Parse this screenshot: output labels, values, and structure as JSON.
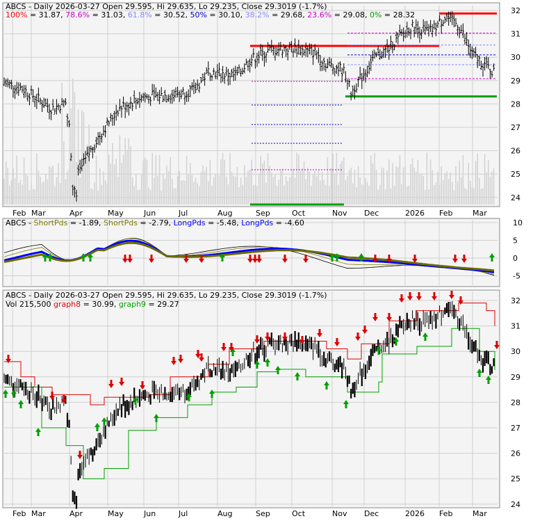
{
  "ticker": "ABCS",
  "colors": {
    "panel_bg": "#f4f4f4",
    "grid": "#cfcfcf",
    "border": "#888888",
    "price": "#000000",
    "volume": "#d3d3d3",
    "fib_red": "#ff0000",
    "fib_green": "#00a000",
    "fib_blue": "#0000cc",
    "fib_magenta": "#cc00cc",
    "short_pds_1": "#000000",
    "short_pds_2": "#808000",
    "long_pds_1": "#0000ff",
    "long_pds_2": "#6b6b00",
    "arrow_up": "#00a000",
    "arrow_down": "#dd0000",
    "graph8": "#e00000",
    "graph9": "#00a000"
  },
  "months": [
    "Feb",
    "Mar",
    "Apr",
    "May",
    "Jun",
    "Jul",
    "Aug",
    "Sep",
    "Oct",
    "Nov",
    "Dec",
    "2026",
    "Feb",
    "Mar"
  ],
  "panel1": {
    "header_prefix": "ABCS - Daily 2026-03-27 Open 29.595, Hi 29.635, Lo 29.235, Close 29.3019 (-1.7%)",
    "fib_legend": [
      {
        "pct": "100%",
        "val": "= 31.87,",
        "color": "#ff0000"
      },
      {
        "pct": "78.6%",
        "val": "= 31.03,",
        "color": "#cc00cc"
      },
      {
        "pct": "61.8%",
        "val": "= 30.52,",
        "color": "#8888ff"
      },
      {
        "pct": "50%",
        "val": "= 30.10,",
        "color": "#0000cc"
      },
      {
        "pct": "38.2%",
        "val": "= 29.68,",
        "color": "#8888ff"
      },
      {
        "pct": "23.6%",
        "val": "= 29.08,",
        "color": "#cc00cc"
      },
      {
        "pct": "0%",
        "val": "= 28.32",
        "color": "#00a000"
      }
    ],
    "y_ticks": [
      "32",
      "31",
      "30",
      "29",
      "28",
      "27",
      "26",
      "25",
      "24"
    ]
  },
  "panel2": {
    "legend": [
      {
        "text": "ABCS - ",
        "color": "#000000"
      },
      {
        "text": "ShortPds",
        "color": "#808000"
      },
      {
        "text": " = -1.89, ",
        "color": "#000000"
      },
      {
        "text": "ShortPds",
        "color": "#808000"
      },
      {
        "text": " = -2.79, ",
        "color": "#000000"
      },
      {
        "text": "LongPds",
        "color": "#0000ff"
      },
      {
        "text": " = -5.48, ",
        "color": "#000000"
      },
      {
        "text": "LongPds",
        "color": "#0000ff"
      },
      {
        "text": " = -4.60",
        "color": "#000000"
      }
    ],
    "y_ticks": [
      "10",
      "5",
      "0",
      "-5"
    ]
  },
  "panel3": {
    "header": "ABCS - Daily 2026-03-27 Open 29.595, Hi 29.635, Lo 29.235, Close 29.3019 (-1.7%)",
    "legend2": [
      {
        "text": "Vol 215,500 ",
        "color": "#000000"
      },
      {
        "text": "graph8",
        "color": "#e00000"
      },
      {
        "text": " = 30.99, ",
        "color": "#000000"
      },
      {
        "text": "graph9",
        "color": "#00a000"
      },
      {
        "text": " = 29.27",
        "color": "#000000"
      }
    ],
    "y_ticks": [
      "32",
      "31",
      "30",
      "29",
      "28",
      "27",
      "26",
      "25",
      "24"
    ]
  },
  "chart_data": {
    "type": "line",
    "x_labels": [
      "Feb",
      "Mar",
      "Apr",
      "May",
      "Jun",
      "Jul",
      "Aug",
      "Sep",
      "Oct",
      "Nov",
      "Dec",
      "2026",
      "Feb",
      "Mar"
    ],
    "close_anchors": [
      [
        "Jan",
        28.9
      ],
      [
        "Feb",
        28.7
      ],
      [
        "Mar",
        27.8
      ],
      [
        "Mar",
        28.1
      ],
      [
        "Apr",
        24.6
      ],
      [
        "Apr",
        26.5
      ],
      [
        "May",
        27.8
      ],
      [
        "May",
        28.3
      ],
      [
        "Jun",
        28.4
      ],
      [
        "Jun",
        28.6
      ],
      [
        "Jul",
        29.4
      ],
      [
        "Jul",
        29.2
      ],
      [
        "Aug",
        29.9
      ],
      [
        "Aug",
        30.3
      ],
      [
        "Sep",
        30.4
      ],
      [
        "Sep",
        30.2
      ],
      [
        "Oct",
        29.7
      ],
      [
        "Oct",
        29.5
      ],
      [
        "Nov",
        29.3
      ],
      [
        "Nov",
        28.5
      ],
      [
        "Dec",
        30.0
      ],
      [
        "Dec",
        30.4
      ],
      [
        "2026",
        31.3
      ],
      [
        "2026",
        31.1
      ],
      [
        "Feb",
        31.7
      ],
      [
        "Feb",
        31.4
      ],
      [
        "Mar",
        30.1
      ],
      [
        "Mar",
        29.3
      ]
    ],
    "fib_levels": {
      "100%": 31.87,
      "78.6%": 31.03,
      "61.8%": 30.52,
      "50%": 30.1,
      "38.2%": 29.68,
      "23.6%": 29.08,
      "0%": 28.32
    },
    "last": {
      "date": "2026-03-27",
      "open": 29.595,
      "high": 29.635,
      "low": 29.235,
      "close": 29.3019,
      "change_pct": -1.7,
      "volume": 215500
    },
    "indicators": {
      "ShortPds_1": -1.89,
      "ShortPds_2": -2.79,
      "LongPds_1": -5.48,
      "LongPds_2": -4.6,
      "graph8": 30.99,
      "graph9": 29.27
    },
    "price_ylim": [
      23.7,
      32.3
    ],
    "oscillator_ylim": [
      -8,
      11
    ]
  }
}
